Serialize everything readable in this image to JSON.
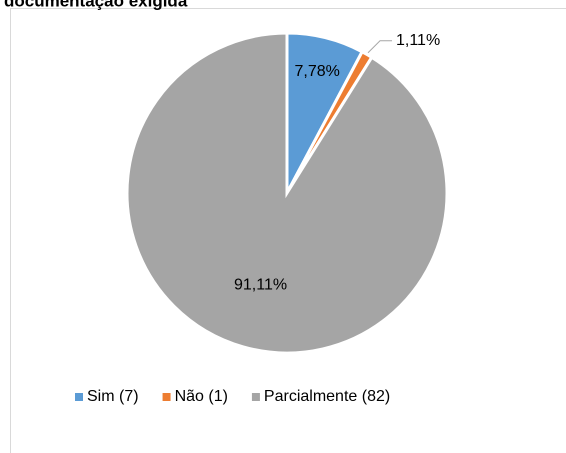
{
  "chart_data": {
    "type": "pie",
    "title": "documentação exigida",
    "categories": [
      "Sim (7)",
      "Não (1)",
      "Parcialmente (82)"
    ],
    "values": [
      7.78,
      1.11,
      91.11
    ],
    "value_labels": [
      "7,78%",
      "1,11%",
      "91,11%"
    ],
    "colors": [
      "#5b9bd5",
      "#ed7d31",
      "#a5a5a5"
    ],
    "legend": "bottom"
  }
}
